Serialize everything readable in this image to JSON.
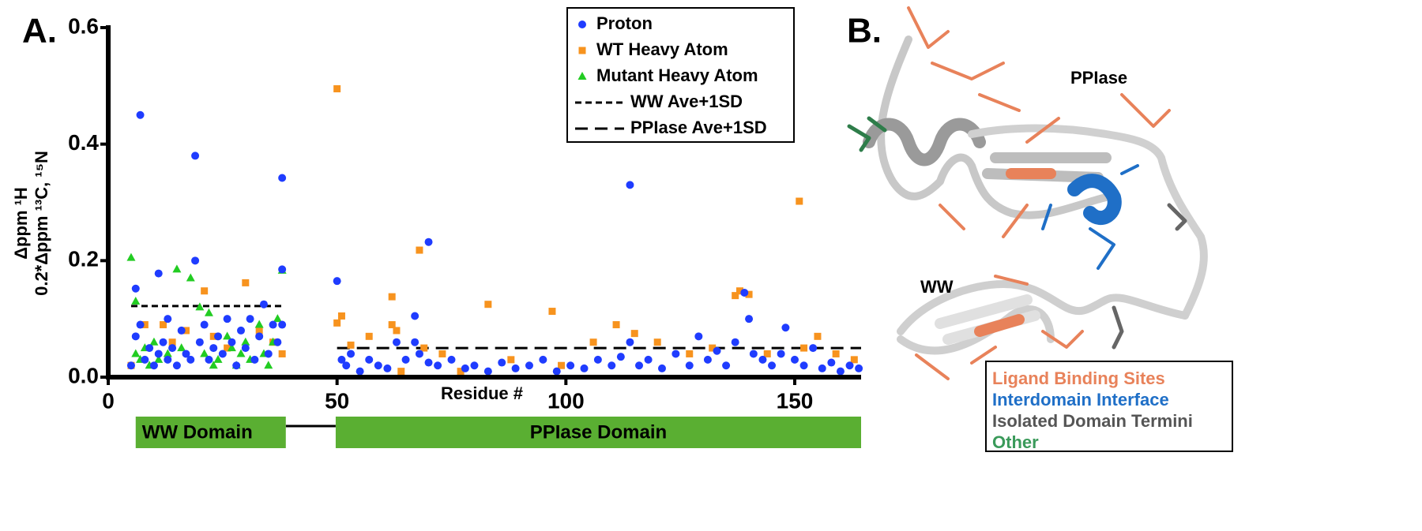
{
  "chart_data": {
    "type": "scatter",
    "panel_label": "A.",
    "xlabel": "Residue #",
    "ylabel": [
      "Δppm ¹H",
      "0.2*Δppm ¹³C, ¹⁵N"
    ],
    "xlim": [
      0,
      164.5
    ],
    "ylim": [
      0,
      0.6
    ],
    "xticks": [
      0,
      50,
      100,
      150
    ],
    "yticks": [
      {
        "value": 0,
        "label": "0.0"
      },
      {
        "value": 0.2,
        "label": "0.2"
      },
      {
        "value": 0.4,
        "label": "0.4"
      },
      {
        "value": 0.6,
        "label": "0.6"
      }
    ],
    "series": [
      {
        "name": "Proton",
        "color": "#1f3cff",
        "marker": "circle",
        "x": [
          5,
          6,
          6,
          7,
          7,
          8,
          9,
          10,
          11,
          11,
          12,
          13,
          13,
          14,
          15,
          16,
          17,
          18,
          19,
          19,
          20,
          21,
          22,
          23,
          24,
          25,
          26,
          27,
          28,
          29,
          30,
          31,
          32,
          33,
          34,
          35,
          36,
          37,
          38,
          38,
          38,
          50,
          51,
          52,
          53,
          55,
          57,
          59,
          61,
          63,
          65,
          67,
          67,
          68,
          70,
          70,
          72,
          75,
          78,
          80,
          83,
          86,
          89,
          92,
          95,
          98,
          101,
          104,
          107,
          110,
          112,
          114,
          114,
          116,
          118,
          121,
          124,
          127,
          129,
          131,
          133,
          135,
          137,
          139,
          140,
          141,
          143,
          145,
          147,
          148,
          150,
          152,
          154,
          156,
          158,
          160,
          162,
          164
        ],
        "values": [
          0.02,
          0.152,
          0.07,
          0.45,
          0.09,
          0.03,
          0.05,
          0.02,
          0.178,
          0.04,
          0.06,
          0.1,
          0.03,
          0.05,
          0.02,
          0.08,
          0.04,
          0.03,
          0.38,
          0.2,
          0.06,
          0.09,
          0.03,
          0.05,
          0.07,
          0.04,
          0.1,
          0.06,
          0.02,
          0.08,
          0.05,
          0.1,
          0.03,
          0.07,
          0.125,
          0.04,
          0.09,
          0.06,
          0.342,
          0.185,
          0.09,
          0.165,
          0.03,
          0.02,
          0.04,
          0.01,
          0.03,
          0.02,
          0.015,
          0.06,
          0.03,
          0.105,
          0.06,
          0.04,
          0.232,
          0.025,
          0.02,
          0.03,
          0.015,
          0.02,
          0.01,
          0.025,
          0.015,
          0.02,
          0.03,
          0.01,
          0.02,
          0.015,
          0.03,
          0.02,
          0.035,
          0.33,
          0.06,
          0.02,
          0.03,
          0.015,
          0.04,
          0.02,
          0.07,
          0.03,
          0.045,
          0.02,
          0.06,
          0.145,
          0.1,
          0.04,
          0.03,
          0.02,
          0.04,
          0.085,
          0.03,
          0.02,
          0.05,
          0.015,
          0.025,
          0.01,
          0.02,
          0.015
        ]
      },
      {
        "name": "WT Heavy Atom",
        "color": "#f7931e",
        "marker": "square",
        "x": [
          5,
          8,
          12,
          14,
          17,
          21,
          23,
          26,
          30,
          33,
          36,
          38,
          50,
          50,
          51,
          53,
          57,
          62,
          62,
          63,
          64,
          68,
          69,
          73,
          77,
          83,
          88,
          97,
          99,
          106,
          111,
          115,
          120,
          127,
          132,
          137,
          138,
          140,
          144,
          151,
          152,
          155,
          159,
          163
        ],
        "values": [
          0.02,
          0.09,
          0.09,
          0.06,
          0.08,
          0.148,
          0.07,
          0.05,
          0.162,
          0.08,
          0.06,
          0.04,
          0.495,
          0.093,
          0.105,
          0.055,
          0.07,
          0.138,
          0.09,
          0.08,
          0.01,
          0.218,
          0.05,
          0.04,
          0.01,
          0.125,
          0.03,
          0.113,
          0.02,
          0.06,
          0.09,
          0.075,
          0.06,
          0.04,
          0.05,
          0.14,
          0.148,
          0.142,
          0.04,
          0.302,
          0.05,
          0.07,
          0.04,
          0.03
        ]
      },
      {
        "name": "Mutant Heavy Atom",
        "color": "#22cc22",
        "marker": "triangle",
        "x": [
          5,
          6,
          6,
          7,
          8,
          9,
          10,
          11,
          13,
          15,
          16,
          18,
          20,
          21,
          22,
          23,
          24,
          26,
          27,
          28,
          29,
          30,
          31,
          33,
          34,
          35,
          36,
          37,
          38
        ],
        "values": [
          0.205,
          0.13,
          0.04,
          0.03,
          0.05,
          0.02,
          0.06,
          0.03,
          0.04,
          0.185,
          0.05,
          0.17,
          0.12,
          0.04,
          0.11,
          0.02,
          0.03,
          0.07,
          0.05,
          0.02,
          0.04,
          0.06,
          0.03,
          0.09,
          0.04,
          0.02,
          0.06,
          0.1,
          0.183
        ]
      }
    ],
    "threshold_lines": [
      {
        "name": "WW Ave+1SD",
        "value": 0.122,
        "x": [
          5,
          38.5
        ],
        "dash": "8 5"
      },
      {
        "name": "PPIase Ave+1SD",
        "value": 0.05,
        "x": [
          50,
          164.5
        ],
        "dash": "16 9"
      }
    ],
    "domains": [
      {
        "name": "WW Domain",
        "x": [
          6,
          38.8
        ],
        "color": "#5aaf32"
      },
      {
        "name": "PPIase Domain",
        "x": [
          49.7,
          164.5
        ],
        "color": "#5aaf32"
      }
    ]
  },
  "structure": {
    "panel_label": "B.",
    "labels": [
      "PPIase",
      "WW"
    ],
    "legend": [
      {
        "name": "Ligand Binding Sites",
        "color": "#e8825a"
      },
      {
        "name": "Interdomain Interface",
        "color": "#1f6fc7"
      },
      {
        "name": "Isolated Domain Termini",
        "color": "#555555"
      },
      {
        "name": "Other",
        "color": "#3a9a5a"
      }
    ]
  }
}
